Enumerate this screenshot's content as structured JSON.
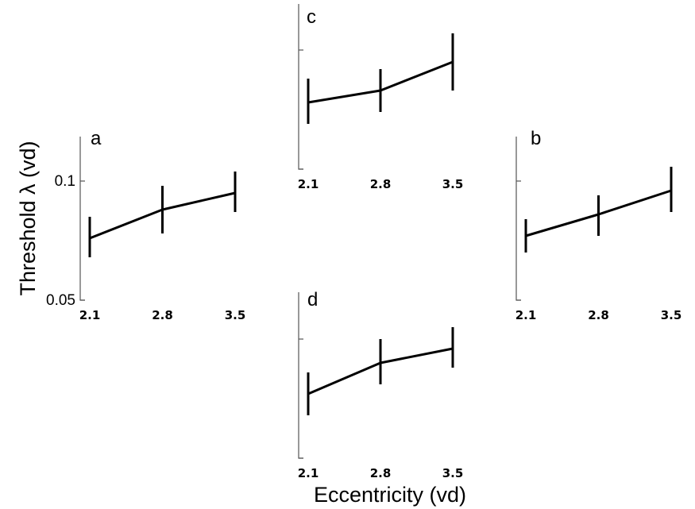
{
  "y_axis_label": "Threshold λ (vd)",
  "x_axis_label": "Eccentricity (vd)",
  "chart_data": [
    {
      "type": "line",
      "panel": "a",
      "x": [
        2.1,
        2.8,
        3.5
      ],
      "x_tick_labels": [
        "2.1",
        "2.8",
        "3.5"
      ],
      "values": [
        0.076,
        0.088,
        0.095
      ],
      "error_low": [
        0.068,
        0.078,
        0.087
      ],
      "error_high": [
        0.085,
        0.098,
        0.104
      ],
      "ylim": [
        0.05,
        0.115
      ],
      "y_ticks": [
        0.05,
        0.1
      ],
      "y_tick_labels": [
        "0.05",
        "0.1"
      ],
      "grid": false
    },
    {
      "type": "line",
      "panel": "b",
      "x": [
        2.1,
        2.8,
        3.5
      ],
      "x_tick_labels": [
        "2.1",
        "2.8",
        "3.5"
      ],
      "values": [
        0.077,
        0.086,
        0.096
      ],
      "error_low": [
        0.07,
        0.077,
        0.087
      ],
      "error_high": [
        0.084,
        0.094,
        0.106
      ],
      "ylim": [
        0.05,
        0.115
      ],
      "y_ticks": [
        0.05,
        0.1
      ],
      "y_tick_labels": [
        "",
        ""
      ],
      "grid": false
    },
    {
      "type": "line",
      "panel": "c",
      "x": [
        2.1,
        2.8,
        3.5
      ],
      "x_tick_labels": [
        "2.1",
        "2.8",
        "3.5"
      ],
      "values": [
        0.078,
        0.083,
        0.095
      ],
      "error_low": [
        0.069,
        0.074,
        0.083
      ],
      "error_high": [
        0.088,
        0.092,
        0.107
      ],
      "ylim": [
        0.05,
        0.115
      ],
      "y_ticks": [
        0.05,
        0.1
      ],
      "y_tick_labels": [
        "",
        ""
      ],
      "grid": false
    },
    {
      "type": "line",
      "panel": "d",
      "x": [
        2.1,
        2.8,
        3.5
      ],
      "x_tick_labels": [
        "2.1",
        "2.8",
        "3.5"
      ],
      "values": [
        0.077,
        0.09,
        0.096
      ],
      "error_low": [
        0.068,
        0.081,
        0.088
      ],
      "error_high": [
        0.086,
        0.1,
        0.105
      ],
      "ylim": [
        0.05,
        0.115
      ],
      "y_ticks": [
        0.05,
        0.1
      ],
      "y_tick_labels": [
        "",
        ""
      ],
      "grid": false
    }
  ]
}
